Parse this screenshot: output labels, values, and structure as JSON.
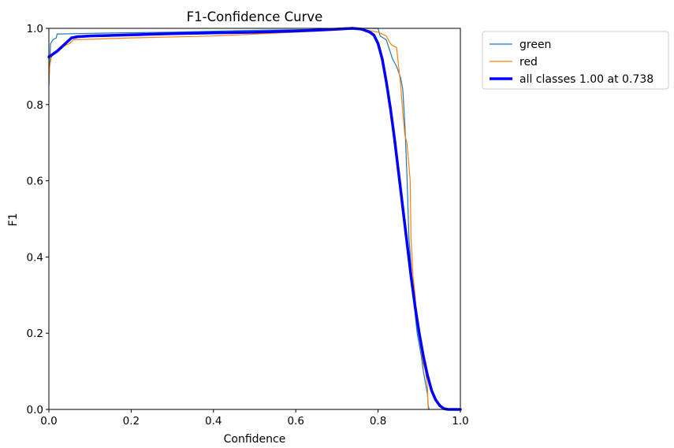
{
  "chart_data": {
    "type": "line",
    "title": "F1-Confidence Curve",
    "xlabel": "Confidence",
    "ylabel": "F1",
    "xlim": [
      0.0,
      1.0
    ],
    "ylim": [
      0.0,
      1.0
    ],
    "xticks": [
      "0.0",
      "0.2",
      "0.4",
      "0.6",
      "0.8",
      "1.0"
    ],
    "yticks": [
      "0.0",
      "0.2",
      "0.4",
      "0.6",
      "0.8",
      "1.0"
    ],
    "grid": false,
    "legend_position": "outside-top-right",
    "series": [
      {
        "name": "green",
        "color": "#1f77b4",
        "line_width": "thin",
        "x": [
          0.0,
          0.004,
          0.01,
          0.018,
          0.02,
          0.1,
          0.3,
          0.5,
          0.7,
          0.74,
          0.78,
          0.8,
          0.805,
          0.82,
          0.835,
          0.845,
          0.855,
          0.86,
          0.865,
          0.87,
          0.875,
          0.88,
          0.885,
          0.89,
          0.895,
          0.9,
          0.905,
          0.91,
          0.915,
          0.92,
          0.922,
          0.924
        ],
        "y": [
          0.85,
          0.96,
          0.97,
          0.975,
          0.985,
          0.987,
          0.99,
          0.995,
          0.998,
          1.0,
          1.0,
          1.0,
          0.98,
          0.97,
          0.92,
          0.9,
          0.87,
          0.84,
          0.75,
          0.62,
          0.45,
          0.38,
          0.3,
          0.25,
          0.2,
          0.17,
          0.14,
          0.1,
          0.07,
          0.04,
          0.01,
          0.0
        ]
      },
      {
        "name": "red",
        "color": "#ff7f0e",
        "line_width": "thin",
        "x": [
          0.0,
          0.002,
          0.005,
          0.01,
          0.03,
          0.05,
          0.06,
          0.2,
          0.4,
          0.6,
          0.7,
          0.75,
          0.8,
          0.81,
          0.82,
          0.83,
          0.835,
          0.845,
          0.85,
          0.855,
          0.86,
          0.865,
          0.87,
          0.875,
          0.878,
          0.88,
          0.885,
          0.89,
          0.895,
          0.9,
          0.905,
          0.91,
          0.915,
          0.92,
          0.921,
          0.922
        ],
        "y": [
          0.86,
          0.9,
          0.92,
          0.935,
          0.95,
          0.96,
          0.97,
          0.975,
          0.98,
          0.99,
          0.995,
          1.0,
          0.99,
          0.985,
          0.98,
          0.96,
          0.955,
          0.95,
          0.9,
          0.85,
          0.78,
          0.72,
          0.7,
          0.64,
          0.6,
          0.45,
          0.35,
          0.3,
          0.22,
          0.2,
          0.15,
          0.12,
          0.1,
          0.06,
          0.02,
          0.0
        ]
      },
      {
        "name": "all classes 1.00 at 0.738",
        "color": "#0000ff",
        "line_width": "thick",
        "x": [
          0.0,
          0.02,
          0.04,
          0.055,
          0.07,
          0.1,
          0.2,
          0.3,
          0.4,
          0.5,
          0.6,
          0.65,
          0.7,
          0.738,
          0.76,
          0.78,
          0.79,
          0.8,
          0.81,
          0.82,
          0.83,
          0.84,
          0.85,
          0.86,
          0.87,
          0.88,
          0.89,
          0.9,
          0.91,
          0.92,
          0.93,
          0.94,
          0.95,
          0.96,
          0.97,
          1.0
        ],
        "y": [
          0.925,
          0.94,
          0.96,
          0.975,
          0.978,
          0.98,
          0.983,
          0.986,
          0.988,
          0.99,
          0.993,
          0.995,
          0.998,
          1.0,
          0.998,
          0.99,
          0.982,
          0.96,
          0.92,
          0.86,
          0.79,
          0.71,
          0.62,
          0.53,
          0.44,
          0.35,
          0.27,
          0.2,
          0.14,
          0.09,
          0.05,
          0.025,
          0.01,
          0.002,
          0.0,
          0.0
        ]
      }
    ]
  }
}
